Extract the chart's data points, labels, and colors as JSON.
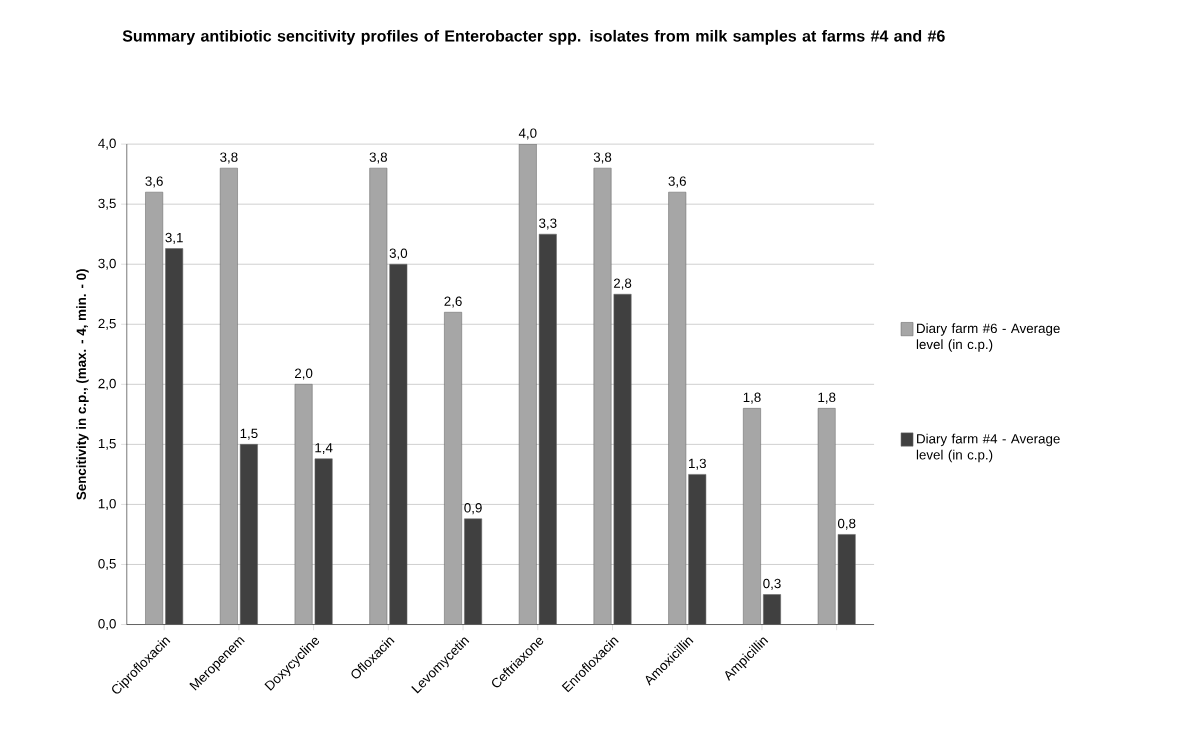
{
  "chart_data": {
    "type": "bar",
    "title": "Summary antibiotic sencitivity profiles of Enterobacter spp. isolates from milk samples at farms #4 and #6",
    "ylabel": "Sencitivity in c.p., (max. - 4, min. - 0)",
    "categories": [
      "Ciprofloxacin",
      "Meropenem",
      "Doxycycline",
      "Ofloxacin",
      "Levomycetin",
      "Ceftriaxone",
      "Enrofloxacin",
      "Amoxicillin",
      "Ampicillin",
      null
    ],
    "series": [
      {
        "name": "Diary farm #6 - Average level (in c.p.)",
        "color": "#a6a6a6",
        "values": [
          3.6,
          3.8,
          2.0,
          3.8,
          2.6,
          4.0,
          3.8,
          3.6,
          1.8,
          1.8
        ],
        "value_labels": [
          "3,6",
          "3,8",
          "2,0",
          "3,8",
          "2,6",
          "4,0",
          "3,8",
          "3,6",
          "1,8",
          "1,8"
        ]
      },
      {
        "name": "Diary farm #4 - Average level (in c.p.)",
        "color": "#404040",
        "values": [
          3.13,
          1.5,
          1.38,
          3.0,
          0.88,
          3.25,
          2.75,
          1.25,
          0.25,
          0.75
        ],
        "value_labels": [
          "3,1",
          "1,5",
          "1,4",
          "3,0",
          "0,9",
          "3,3",
          "2,8",
          "1,3",
          "0,3",
          "0,8"
        ]
      }
    ],
    "ylim": [
      0,
      4
    ],
    "yticks": [
      {
        "value": 0,
        "label": "0,0"
      },
      {
        "value": 0.5,
        "label": "0,5"
      },
      {
        "value": 1,
        "label": "1,0"
      },
      {
        "value": 1.5,
        "label": "1,5"
      },
      {
        "value": 2,
        "label": "2,0"
      },
      {
        "value": 2.5,
        "label": "2,5"
      },
      {
        "value": 3,
        "label": "3,0"
      },
      {
        "value": 3.5,
        "label": "3,5"
      },
      {
        "value": 4,
        "label": "4,0"
      }
    ],
    "grid": "y",
    "legend": "right"
  }
}
